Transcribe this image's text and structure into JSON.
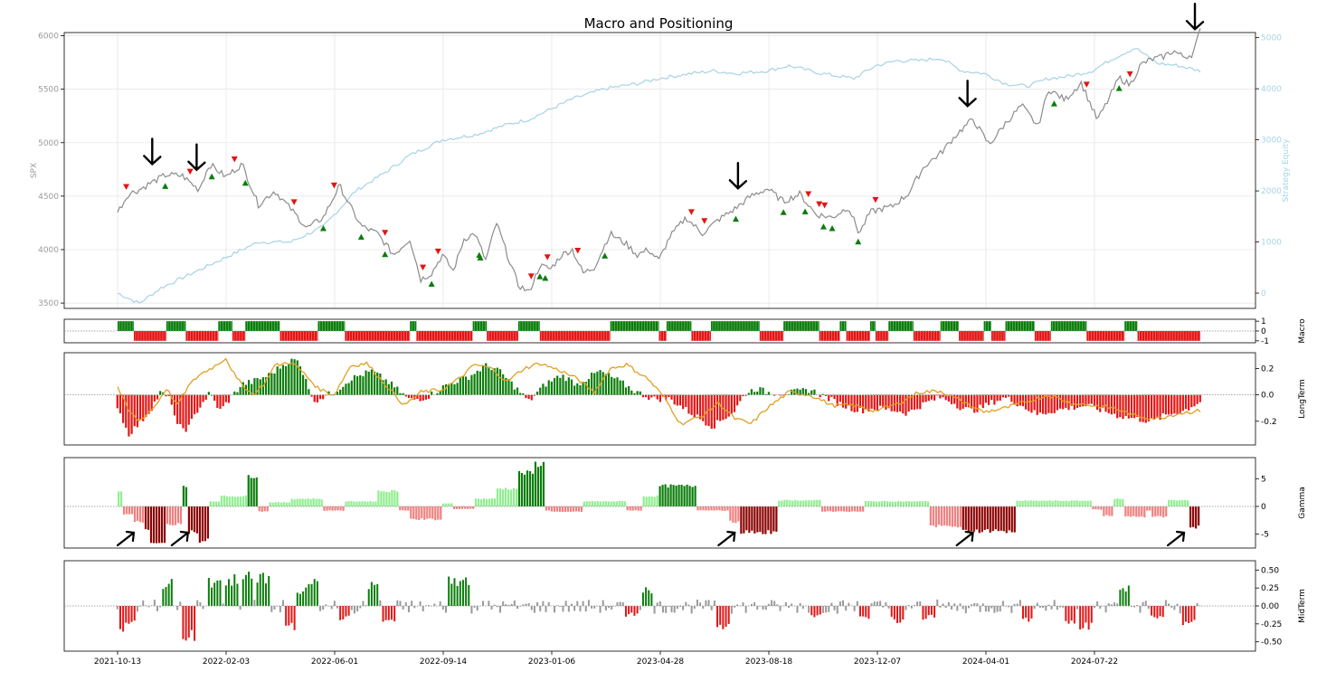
{
  "title": "Macro and Positioning",
  "x_axis": {
    "tick_labels": [
      "2021-10-13",
      "2022-02-03",
      "2022-06-01",
      "2022-09-14",
      "2023-01-06",
      "2023-04-28",
      "2023-08-18",
      "2023-12-07",
      "2024-04-01",
      "2024-07-22"
    ]
  },
  "colors": {
    "price": "#8c8c8c",
    "equity": "#a7d3e3",
    "positive": "#0a7d0a",
    "negative": "#e41414",
    "light_positive": "#90ee90",
    "light_negative": "#f08080",
    "dark_negative": "#8b0000",
    "orange": "#e0a020",
    "annotation": "#000000"
  },
  "chart_data": [
    {
      "id": "price",
      "type": "line",
      "title": "Macro and Positioning",
      "ylabel": "SPX",
      "ylim": [
        3450,
        6030
      ],
      "yticks": [
        3500,
        4000,
        4500,
        5000,
        5500,
        6000
      ],
      "y2label": "Strategy Equity",
      "y2lim": [
        -300,
        5100
      ],
      "y2ticks": [
        0,
        1000,
        2000,
        3000,
        4000,
        5000
      ],
      "series": [
        {
          "name": "SPX",
          "color": "#8c8c8c",
          "x": [
            0,
            0.01,
            0.02,
            0.03,
            0.045,
            0.06,
            0.075,
            0.085,
            0.1,
            0.115,
            0.13,
            0.145,
            0.16,
            0.175,
            0.19,
            0.205,
            0.215,
            0.225,
            0.24,
            0.255,
            0.27,
            0.28,
            0.29,
            0.3,
            0.31,
            0.32,
            0.33,
            0.34,
            0.35,
            0.36,
            0.37,
            0.38,
            0.39,
            0.4,
            0.41,
            0.42,
            0.43,
            0.44,
            0.455,
            0.47,
            0.48,
            0.49,
            0.5,
            0.51,
            0.525,
            0.54,
            0.555,
            0.57,
            0.585,
            0.6,
            0.615,
            0.63,
            0.645,
            0.66,
            0.675,
            0.685,
            0.695,
            0.705,
            0.715,
            0.73,
            0.745,
            0.76,
            0.775,
            0.79,
            0.805,
            0.82,
            0.835,
            0.85,
            0.86,
            0.875,
            0.89,
            0.905,
            0.915,
            0.925,
            0.935,
            0.945,
            0.955,
            0.965,
            0.975,
            0.985,
            0.993,
            1.0
          ],
          "y": [
            4350,
            4520,
            4560,
            4620,
            4700,
            4690,
            4560,
            4800,
            4680,
            4800,
            4420,
            4550,
            4380,
            4200,
            4300,
            4600,
            4400,
            4220,
            4150,
            3950,
            4100,
            3720,
            3780,
            3950,
            3800,
            4100,
            4150,
            3900,
            4250,
            3950,
            3670,
            3600,
            3850,
            3820,
            3950,
            4000,
            3780,
            3830,
            4150,
            4050,
            3950,
            4000,
            3900,
            4120,
            4300,
            4150,
            4280,
            4380,
            4500,
            4570,
            4450,
            4520,
            4330,
            4300,
            4400,
            4150,
            4350,
            4380,
            4400,
            4520,
            4780,
            4900,
            5080,
            5220,
            4980,
            5180,
            5350,
            5150,
            5500,
            5400,
            5560,
            5210,
            5400,
            5610,
            5540,
            5730,
            5780,
            5800,
            5860,
            5800,
            5830,
            6050
          ]
        },
        {
          "name": "Strategy Equity",
          "color": "#a7d3e3",
          "axis": "y2",
          "x": [
            0.0,
            0.02,
            0.04,
            0.07,
            0.1,
            0.13,
            0.16,
            0.19,
            0.22,
            0.25,
            0.27,
            0.3,
            0.33,
            0.36,
            0.38,
            0.4,
            0.42,
            0.45,
            0.48,
            0.5,
            0.53,
            0.55,
            0.57,
            0.6,
            0.62,
            0.65,
            0.68,
            0.7,
            0.72,
            0.74,
            0.76,
            0.78,
            0.8,
            0.82,
            0.84,
            0.86,
            0.88,
            0.9,
            0.92,
            0.94,
            0.96,
            0.98,
            1.0
          ],
          "y": [
            0,
            -200,
            100,
            400,
            700,
            1000,
            1000,
            1300,
            2000,
            2400,
            2700,
            3000,
            3100,
            3300,
            3400,
            3600,
            3800,
            4000,
            4100,
            4200,
            4300,
            4350,
            4300,
            4350,
            4450,
            4300,
            4200,
            4450,
            4550,
            4550,
            4600,
            4350,
            4300,
            4100,
            4050,
            4200,
            4250,
            4350,
            4600,
            4800,
            4500,
            4450,
            4350
          ]
        }
      ],
      "buy_markers": [
        0.044,
        0.087,
        0.118,
        0.19,
        0.225,
        0.247,
        0.29,
        0.335,
        0.334,
        0.39,
        0.395,
        0.45,
        0.571,
        0.615,
        0.635,
        0.652,
        0.66,
        0.684,
        0.865,
        0.925
      ],
      "sell_markers": [
        0.008,
        0.067,
        0.108,
        0.163,
        0.2,
        0.247,
        0.282,
        0.296,
        0.382,
        0.397,
        0.425,
        0.542,
        0.53,
        0.638,
        0.648,
        0.653,
        0.7,
        0.895,
        0.935
      ],
      "arrows": [
        0.032,
        0.073,
        0.573,
        0.785,
        0.995
      ]
    },
    {
      "id": "macro",
      "type": "bar",
      "ylabel": "Macro",
      "ylim": [
        -1.2,
        1.2
      ],
      "yticks": [
        1,
        0,
        -1
      ],
      "segments": [
        [
          0.0,
          0.015,
          1
        ],
        [
          0.015,
          0.045,
          -1
        ],
        [
          0.045,
          0.063,
          1
        ],
        [
          0.063,
          0.093,
          -1
        ],
        [
          0.093,
          0.106,
          1
        ],
        [
          0.106,
          0.118,
          -1
        ],
        [
          0.118,
          0.15,
          1
        ],
        [
          0.15,
          0.185,
          -1
        ],
        [
          0.185,
          0.21,
          1
        ],
        [
          0.21,
          0.27,
          -1
        ],
        [
          0.27,
          0.276,
          1
        ],
        [
          0.276,
          0.328,
          -1
        ],
        [
          0.328,
          0.341,
          1
        ],
        [
          0.341,
          0.37,
          -1
        ],
        [
          0.37,
          0.39,
          1
        ],
        [
          0.39,
          0.455,
          -1
        ],
        [
          0.455,
          0.5,
          1
        ],
        [
          0.5,
          0.507,
          -1
        ],
        [
          0.507,
          0.53,
          1
        ],
        [
          0.53,
          0.548,
          -1
        ],
        [
          0.548,
          0.593,
          1
        ],
        [
          0.593,
          0.615,
          -1
        ],
        [
          0.615,
          0.648,
          1
        ],
        [
          0.648,
          0.667,
          -1
        ],
        [
          0.667,
          0.673,
          1
        ],
        [
          0.673,
          0.695,
          -1
        ],
        [
          0.695,
          0.7,
          1
        ],
        [
          0.7,
          0.712,
          -1
        ],
        [
          0.712,
          0.735,
          1
        ],
        [
          0.735,
          0.76,
          -1
        ],
        [
          0.76,
          0.777,
          1
        ],
        [
          0.777,
          0.8,
          -1
        ],
        [
          0.8,
          0.807,
          1
        ],
        [
          0.807,
          0.82,
          -1
        ],
        [
          0.82,
          0.847,
          1
        ],
        [
          0.847,
          0.862,
          -1
        ],
        [
          0.862,
          0.895,
          1
        ],
        [
          0.895,
          0.93,
          -1
        ],
        [
          0.93,
          0.942,
          1
        ],
        [
          0.942,
          0.96,
          -1
        ],
        [
          0.96,
          1.0,
          -1
        ]
      ]
    },
    {
      "id": "longterm",
      "type": "bar",
      "ylabel": "LongTerm",
      "ylim": [
        -0.38,
        0.32
      ],
      "yticks": [
        0.2,
        0.0,
        -0.2
      ],
      "bar_profile": {
        "x": [
          0,
          0.01,
          0.02,
          0.03,
          0.04,
          0.05,
          0.055,
          0.065,
          0.075,
          0.085,
          0.095,
          0.105,
          0.115,
          0.125,
          0.14,
          0.155,
          0.165,
          0.175,
          0.18,
          0.2,
          0.215,
          0.235,
          0.25,
          0.27,
          0.285,
          0.305,
          0.325,
          0.34,
          0.35,
          0.365,
          0.38,
          0.395,
          0.41,
          0.425,
          0.445,
          0.46,
          0.48,
          0.495,
          0.51,
          0.53,
          0.55,
          0.57,
          0.58,
          0.59,
          0.6,
          0.615,
          0.625,
          0.64,
          0.655,
          0.67,
          0.685,
          0.7,
          0.72,
          0.73,
          0.74,
          0.75,
          0.76,
          0.77,
          0.78,
          0.79,
          0.8,
          0.81,
          0.82,
          0.835,
          0.85,
          0.865,
          0.88,
          0.895,
          0.91,
          0.925,
          0.94,
          0.955,
          0.97,
          0.985,
          1.0
        ],
        "y": [
          -0.08,
          -0.3,
          -0.22,
          -0.12,
          0.02,
          -0.05,
          -0.24,
          -0.26,
          -0.1,
          0.01,
          -0.12,
          -0.02,
          0.08,
          0.1,
          0.15,
          0.24,
          0.27,
          0.12,
          -0.05,
          0.02,
          0.12,
          0.18,
          0.1,
          -0.04,
          -0.02,
          0.08,
          0.14,
          0.22,
          0.2,
          0.08,
          -0.05,
          0.08,
          0.15,
          0.08,
          0.18,
          0.12,
          0.02,
          -0.03,
          -0.03,
          -0.14,
          -0.24,
          -0.12,
          0.01,
          0.05,
          0.02,
          0.01,
          0.02,
          0.04,
          -0.02,
          -0.08,
          -0.12,
          -0.1,
          -0.12,
          -0.14,
          -0.09,
          -0.05,
          -0.02,
          -0.05,
          -0.1,
          -0.12,
          -0.09,
          -0.05,
          -0.02,
          -0.08,
          -0.15,
          -0.12,
          -0.1,
          -0.08,
          -0.12,
          -0.16,
          -0.18,
          -0.2,
          -0.15,
          -0.12,
          -0.05
        ]
      },
      "line": {
        "x": [
          0,
          0.01,
          0.02,
          0.035,
          0.045,
          0.055,
          0.065,
          0.075,
          0.09,
          0.1,
          0.11,
          0.125,
          0.135,
          0.145,
          0.16,
          0.17,
          0.185,
          0.2,
          0.215,
          0.23,
          0.245,
          0.265,
          0.28,
          0.3,
          0.315,
          0.33,
          0.345,
          0.36,
          0.375,
          0.39,
          0.41,
          0.425,
          0.44,
          0.455,
          0.47,
          0.49,
          0.505,
          0.52,
          0.54,
          0.555,
          0.57,
          0.585,
          0.6,
          0.62,
          0.64,
          0.66,
          0.68,
          0.7,
          0.72,
          0.74,
          0.76,
          0.78,
          0.8,
          0.82,
          0.84,
          0.86,
          0.88,
          0.9,
          0.92,
          0.94,
          0.96,
          0.98,
          1.0
        ],
        "y": [
          0.06,
          -0.12,
          -0.2,
          -0.08,
          0.05,
          -0.08,
          0.06,
          0.15,
          0.22,
          0.28,
          0.12,
          0.0,
          0.08,
          0.22,
          0.25,
          0.18,
          0.05,
          0.0,
          0.22,
          0.24,
          0.1,
          -0.08,
          0.02,
          0.04,
          0.12,
          0.23,
          0.2,
          0.1,
          0.2,
          0.24,
          0.18,
          0.12,
          0.02,
          0.2,
          0.23,
          0.12,
          -0.02,
          -0.22,
          -0.16,
          -0.06,
          -0.18,
          -0.22,
          -0.1,
          0.02,
          0.0,
          -0.08,
          -0.08,
          -0.12,
          -0.07,
          0.02,
          0.03,
          -0.05,
          -0.13,
          -0.1,
          -0.05,
          0.0,
          -0.06,
          -0.08,
          -0.1,
          -0.16,
          -0.18,
          -0.14,
          -0.12
        ]
      }
    },
    {
      "id": "gamma",
      "type": "bar",
      "ylabel": "Gamma",
      "ylim": [
        -7.5,
        8.8
      ],
      "yticks": [
        5,
        0,
        -5
      ],
      "steps": [
        [
          0.0,
          0.005,
          3.0
        ],
        [
          0.005,
          0.015,
          -1.5
        ],
        [
          0.015,
          0.025,
          -3.0
        ],
        [
          0.025,
          0.03,
          -4.5
        ],
        [
          0.03,
          0.045,
          -6.8
        ],
        [
          0.045,
          0.06,
          -3.5
        ],
        [
          0.06,
          0.065,
          4.0
        ],
        [
          0.065,
          0.075,
          -5.0
        ],
        [
          0.075,
          0.085,
          -6.8
        ],
        [
          0.085,
          0.095,
          1.0
        ],
        [
          0.095,
          0.12,
          2.0
        ],
        [
          0.12,
          0.13,
          6.0
        ],
        [
          0.13,
          0.14,
          -1.0
        ],
        [
          0.14,
          0.16,
          0.8
        ],
        [
          0.16,
          0.19,
          1.5
        ],
        [
          0.19,
          0.21,
          -0.8
        ],
        [
          0.21,
          0.24,
          1.0
        ],
        [
          0.24,
          0.26,
          3.0
        ],
        [
          0.26,
          0.27,
          -0.8
        ],
        [
          0.27,
          0.3,
          -2.5
        ],
        [
          0.3,
          0.31,
          0.6
        ],
        [
          0.31,
          0.33,
          -0.5
        ],
        [
          0.33,
          0.35,
          1.5
        ],
        [
          0.35,
          0.37,
          3.5
        ],
        [
          0.37,
          0.385,
          6.5
        ],
        [
          0.385,
          0.395,
          8.3
        ],
        [
          0.395,
          0.4,
          -0.8
        ],
        [
          0.4,
          0.43,
          -1.0
        ],
        [
          0.43,
          0.45,
          1.0
        ],
        [
          0.45,
          0.47,
          1.0
        ],
        [
          0.47,
          0.485,
          -0.8
        ],
        [
          0.485,
          0.5,
          2.0
        ],
        [
          0.5,
          0.535,
          4.0
        ],
        [
          0.535,
          0.565,
          -0.8
        ],
        [
          0.565,
          0.575,
          -3.0
        ],
        [
          0.575,
          0.61,
          -5.0
        ],
        [
          0.61,
          0.65,
          1.2
        ],
        [
          0.65,
          0.69,
          -1.0
        ],
        [
          0.69,
          0.75,
          1.0
        ],
        [
          0.75,
          0.78,
          -3.8
        ],
        [
          0.78,
          0.83,
          -4.8
        ],
        [
          0.83,
          0.9,
          1.1
        ],
        [
          0.9,
          0.91,
          -0.6
        ],
        [
          0.91,
          0.92,
          -1.8
        ],
        [
          0.92,
          0.93,
          1.5
        ],
        [
          0.93,
          0.95,
          -2.0
        ],
        [
          0.95,
          0.955,
          -0.8
        ],
        [
          0.955,
          0.97,
          -2.0
        ],
        [
          0.97,
          0.99,
          1.2
        ],
        [
          0.99,
          1.0,
          -4.0
        ]
      ]
    },
    {
      "id": "midterm",
      "type": "bar",
      "ylabel": "MidTerm",
      "ylim": [
        -0.63,
        0.63
      ],
      "yticks": [
        0.5,
        0.25,
        0.0,
        -0.25,
        -0.5
      ],
      "spikes": [
        [
          0.008,
          -0.45
        ],
        [
          0.012,
          -0.32
        ],
        [
          0.046,
          0.38
        ],
        [
          0.066,
          -0.55
        ],
        [
          0.09,
          0.4
        ],
        [
          0.106,
          0.45
        ],
        [
          0.12,
          0.5
        ],
        [
          0.135,
          0.5
        ],
        [
          0.16,
          -0.35
        ],
        [
          0.17,
          0.22
        ],
        [
          0.18,
          0.38
        ],
        [
          0.21,
          -0.2
        ],
        [
          0.236,
          0.35
        ],
        [
          0.25,
          -0.25
        ],
        [
          0.31,
          0.45
        ],
        [
          0.32,
          0.42
        ],
        [
          0.475,
          -0.15
        ],
        [
          0.49,
          0.28
        ],
        [
          0.56,
          -0.38
        ],
        [
          0.645,
          -0.18
        ],
        [
          0.69,
          -0.2
        ],
        [
          0.72,
          -0.25
        ],
        [
          0.75,
          -0.2
        ],
        [
          0.84,
          -0.25
        ],
        [
          0.88,
          -0.3
        ],
        [
          0.895,
          -0.35
        ],
        [
          0.93,
          0.3
        ],
        [
          0.96,
          -0.2
        ],
        [
          0.99,
          -0.28
        ]
      ]
    }
  ]
}
